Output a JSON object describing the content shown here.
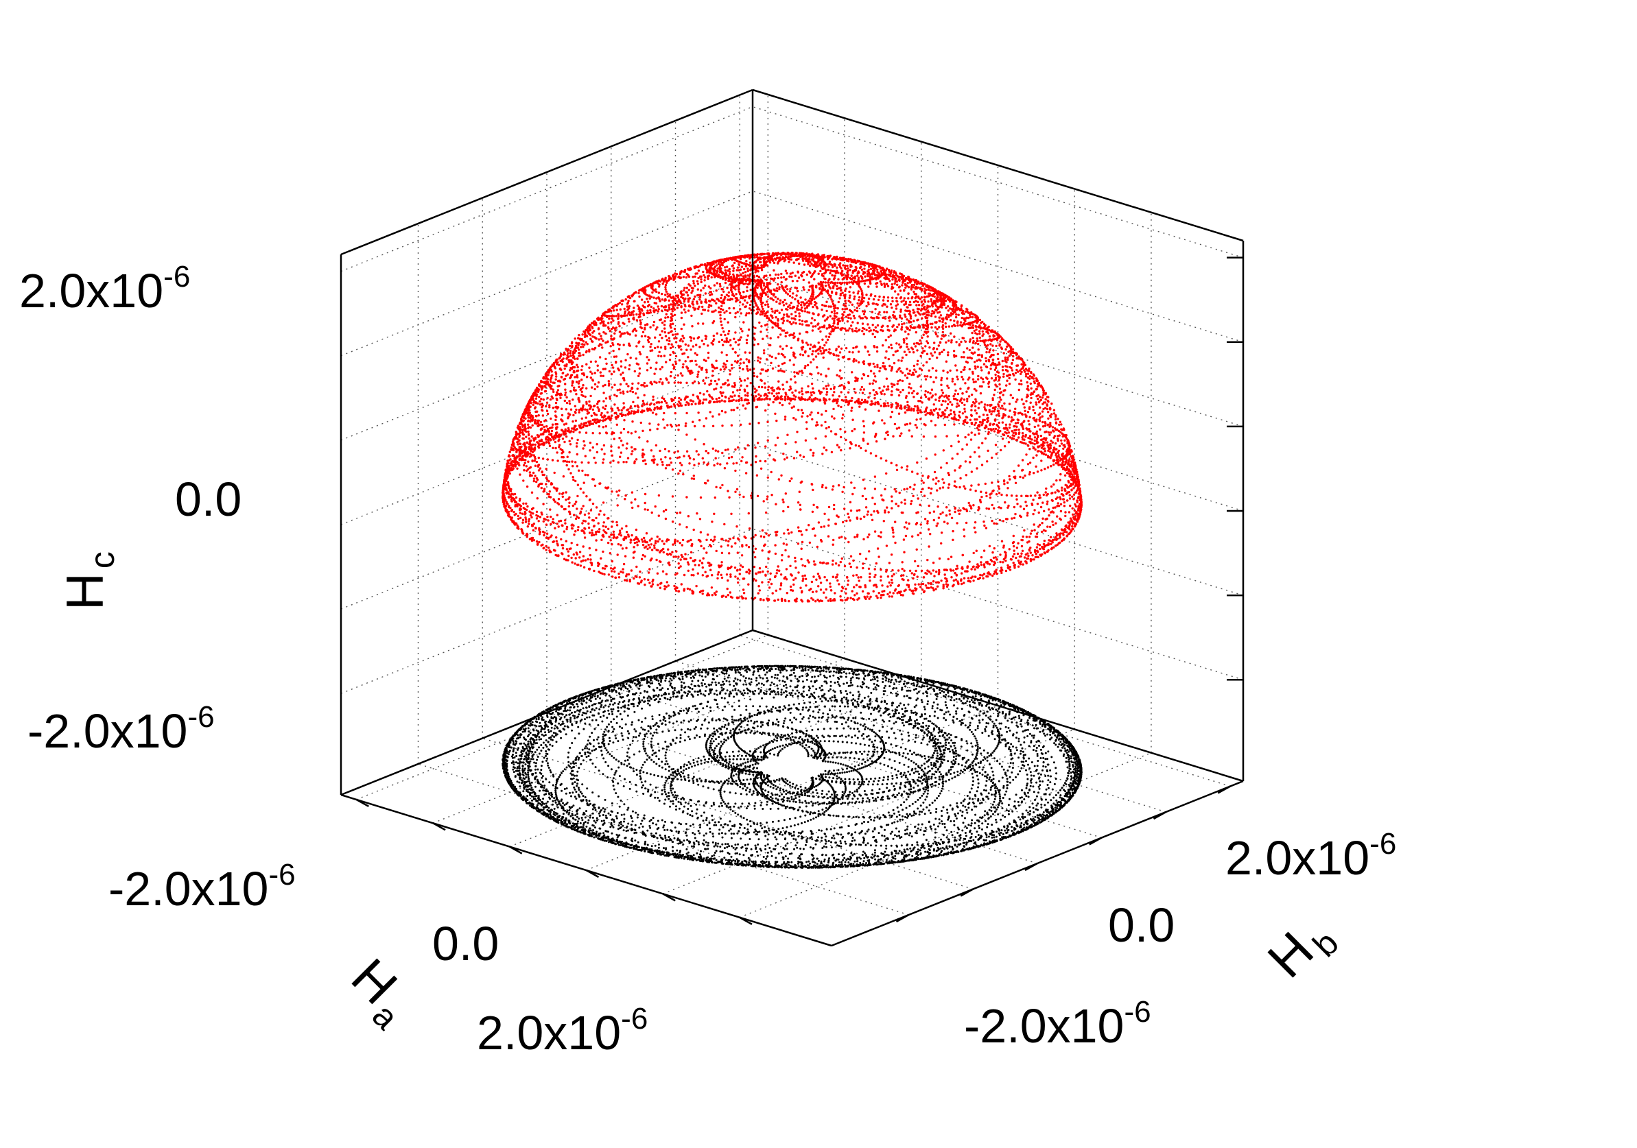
{
  "chart_data": {
    "type": "scatter",
    "dimensions": 3,
    "axes": {
      "a": {
        "label": "H",
        "subscript": "a",
        "ticks": [
          {
            "value": -2e-06,
            "label": "-2.0x10",
            "exp": "-6"
          },
          {
            "value": 0.0,
            "label": "0.0",
            "exp": ""
          },
          {
            "value": 2e-06,
            "label": "2.0x10",
            "exp": "-6"
          }
        ]
      },
      "b": {
        "label": "H",
        "subscript": "b",
        "ticks": [
          {
            "value": -2e-06,
            "label": "-2.0x10",
            "exp": "-6"
          },
          {
            "value": 0.0,
            "label": "0.0",
            "exp": ""
          },
          {
            "value": 2e-06,
            "label": "2.0x10",
            "exp": "-6"
          }
        ]
      },
      "c": {
        "label": "H",
        "subscript": "c",
        "ticks": [
          {
            "value": -2e-06,
            "label": "-2.0x10",
            "exp": "-6"
          },
          {
            "value": 0.0,
            "label": "0.0",
            "exp": ""
          },
          {
            "value": 2e-06,
            "label": "2.0x10",
            "exp": "-6"
          }
        ]
      }
    },
    "ranges": {
      "a": [
        -3.2e-06,
        3.2e-06
      ],
      "b": [
        -3.2e-06,
        3.2e-06
      ],
      "c": [
        -3.2e-06,
        3.2e-06
      ]
    },
    "grid": true,
    "series": [
      {
        "kind": "trajectory-upper-hemisphere",
        "color": "#ff0000",
        "radius": 2.9e-06,
        "c_min": 0.0
      },
      {
        "kind": "projection-on-floor",
        "color": "#000000",
        "radius": 2.9e-06
      }
    ]
  }
}
